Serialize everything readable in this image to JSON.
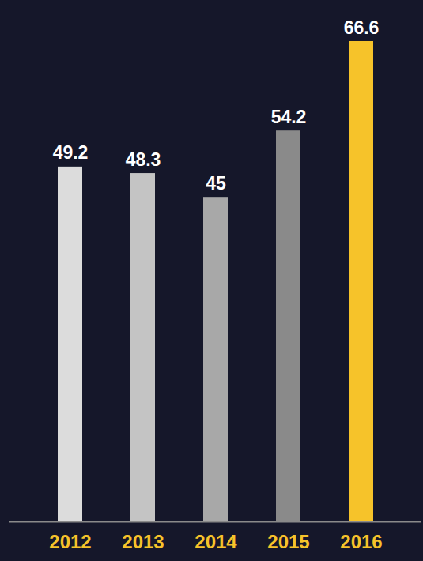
{
  "chart_data": {
    "type": "bar",
    "categories": [
      "2012",
      "2013",
      "2014",
      "2015",
      "2016"
    ],
    "values": [
      49.2,
      48.3,
      45,
      54.2,
      66.6
    ],
    "colors": [
      "#dcdcdc",
      "#c4c4c4",
      "#a8a8a8",
      "#8a8a8a",
      "#f6c32a"
    ],
    "ylim": [
      0,
      66.6
    ],
    "yticks": [],
    "grid": false,
    "data_labels": true,
    "tick_labels": "x"
  }
}
